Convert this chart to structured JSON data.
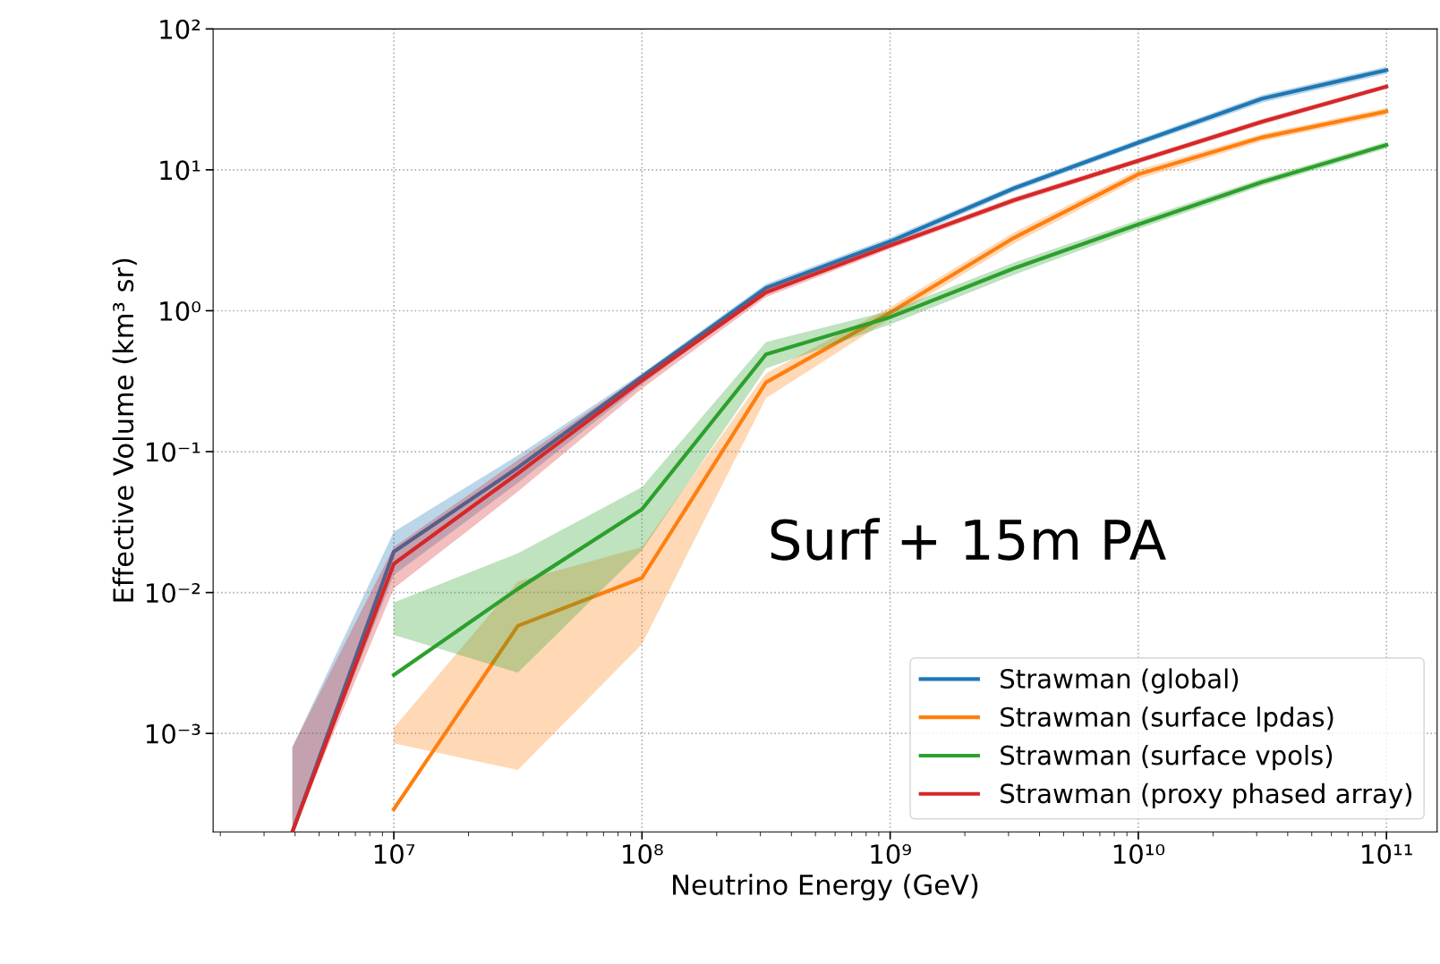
{
  "chart_data": {
    "type": "line",
    "xlabel": "Neutrino Energy (GeV)",
    "ylabel": "Effective Volume (km³ sr)",
    "log": "xy",
    "grid": true,
    "legend": "bottom right",
    "line_style": "solid",
    "marker": "none",
    "xlim": [
      1870000.0,
      160000000000.0
    ],
    "ylim": [
      0.0002,
      100
    ],
    "xticks": [
      {
        "value": 10000000.0,
        "label": "10⁷"
      },
      {
        "value": 100000000.0,
        "label": "10⁸"
      },
      {
        "value": 1000000000.0,
        "label": "10⁹"
      },
      {
        "value": 10000000000.0,
        "label": "10¹⁰"
      },
      {
        "value": 100000000000.0,
        "label": "10¹¹"
      }
    ],
    "yticks": [
      {
        "value": 0.001,
        "label": "10⁻³"
      },
      {
        "value": 0.01,
        "label": "10⁻²"
      },
      {
        "value": 0.1,
        "label": "10⁻¹"
      },
      {
        "value": 1,
        "label": "10⁰"
      },
      {
        "value": 10,
        "label": "10¹"
      },
      {
        "value": 100,
        "label": "10²"
      }
    ],
    "annotations": [
      "Surf + 15m PA"
    ],
    "series": [
      {
        "name": "Strawman (global)",
        "color": "#1f77b4",
        "x": [
          3900000.0,
          10000000.0,
          31600000.0,
          100000000.0,
          316000000.0,
          1000000000.0,
          3160000000.0,
          10000000000.0,
          31600000000.0,
          100000000000.0
        ],
        "values": [
          0.0002,
          0.0195,
          0.077,
          0.34,
          1.45,
          3.1,
          7.4,
          15.6,
          32,
          51
        ],
        "lower": [
          0.0002,
          0.0133,
          0.06,
          0.3,
          1.35,
          2.9,
          7.0,
          14.8,
          30,
          48
        ],
        "upper": [
          0.0008,
          0.027,
          0.094,
          0.36,
          1.55,
          3.3,
          7.8,
          16.4,
          34,
          54
        ]
      },
      {
        "name": "Strawman (surface lpdas)",
        "color": "#ff7f0e",
        "x": [
          10000000.0,
          31600000.0,
          100000000.0,
          316000000.0,
          1000000000.0,
          3160000000.0,
          10000000000.0,
          31600000000.0,
          100000000000.0
        ],
        "values": [
          0.00029,
          0.0058,
          0.0127,
          0.31,
          0.97,
          3.3,
          9.3,
          17,
          26
        ],
        "lower": [
          0.00085,
          0.00055,
          0.0043,
          0.24,
          0.88,
          3.0,
          8.6,
          16,
          24.5
        ],
        "upper": [
          0.0011,
          0.012,
          0.021,
          0.36,
          1.06,
          3.6,
          10,
          18,
          27.5
        ]
      },
      {
        "name": "Strawman (surface vpols)",
        "color": "#2ca02c",
        "x": [
          10000000.0,
          31600000.0,
          100000000.0,
          316000000.0,
          1000000000.0,
          3160000000.0,
          10000000000.0,
          31600000000.0,
          100000000000.0
        ],
        "values": [
          0.0026,
          0.0106,
          0.039,
          0.49,
          0.9,
          2.0,
          4.1,
          8.2,
          15
        ],
        "lower": [
          0.005,
          0.0027,
          0.02,
          0.39,
          0.8,
          1.8,
          3.8,
          7.7,
          14.2
        ],
        "upper": [
          0.0085,
          0.019,
          0.056,
          0.6,
          1.0,
          2.2,
          4.4,
          8.7,
          15.8
        ]
      },
      {
        "name": "Strawman (proxy phased array)",
        "color": "#d62728",
        "x": [
          3900000.0,
          10000000.0,
          31600000.0,
          100000000.0,
          316000000.0,
          1000000000.0,
          3160000000.0,
          10000000000.0,
          31600000000.0,
          100000000000.0
        ],
        "values": [
          0.0002,
          0.016,
          0.07,
          0.32,
          1.35,
          2.9,
          6.1,
          11.6,
          22,
          39
        ],
        "lower": [
          0.0002,
          0.0107,
          0.052,
          0.28,
          1.25,
          2.75,
          5.8,
          11.1,
          21,
          37.5
        ],
        "upper": [
          0.0008,
          0.021,
          0.087,
          0.35,
          1.45,
          3.05,
          6.4,
          12.1,
          23,
          40.5
        ]
      }
    ]
  }
}
